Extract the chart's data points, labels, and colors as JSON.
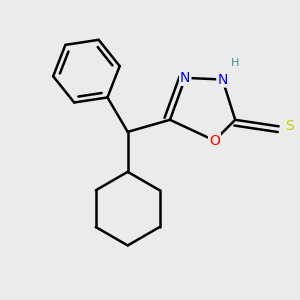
{
  "background_color": "#ebebeb",
  "line_color": "#000000",
  "bond_width": 1.8,
  "atom_colors": {
    "N": "#0000ff",
    "O": "#ff0000",
    "S": "#cccc00",
    "H_label": "#3d9191"
  },
  "font_size_atom": 10,
  "font_size_H": 8,
  "xlim": [
    0.0,
    2.8
  ],
  "ylim": [
    -0.3,
    2.3
  ]
}
